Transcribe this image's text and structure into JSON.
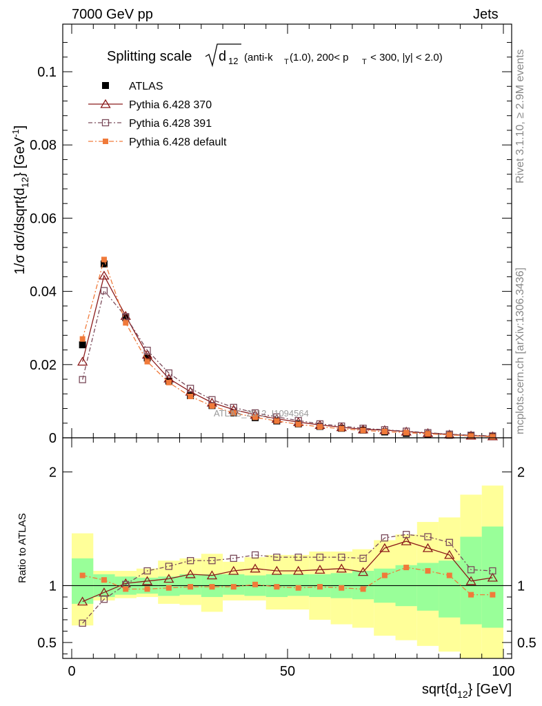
{
  "header": {
    "left": "7000 GeV pp",
    "right": "Jets"
  },
  "side_labels": {
    "rivet": "Rivet 3.1.10, ≥ 2.9M events",
    "mcplots": "mcplots.cern.ch [arXiv:1306.3436]"
  },
  "watermark": "ATLAS_2012_I1094564",
  "colors": {
    "atlas": "#000000",
    "p370": "#8b1a1a",
    "p391": "#7a4a5a",
    "pdefault": "#f07a3a",
    "band_inner": "#99ff99",
    "band_outer": "#ffff99"
  },
  "chart_data": {
    "type": "line",
    "title_main": "Splitting scale",
    "title_math_d": "d",
    "title_math_sub": "12",
    "title_rest1": " (anti-k",
    "title_rest_sub_T": "T",
    "title_rest2": "(1.0), 200< p",
    "title_rest3": " < 300, |y| < 2.0)",
    "ylabel": "1/σ dσ/dsqrt{d",
    "ylabel_sub": "12",
    "ylabel_end": "} [GeV",
    "ylabel_sup": "-1",
    "ylabel_close": "]",
    "ratio_ylabel": "Ratio to ATLAS",
    "xlabel": "sqrt{d",
    "xlabel_sub": "12",
    "xlabel_end": "} [GeV]",
    "xlim": [
      0,
      100
    ],
    "ylim": [
      0,
      0.113
    ],
    "ratio_ylim": [
      0.36,
      2.3
    ],
    "main_yticks": [
      {
        "v": 0.0,
        "label": "0"
      },
      {
        "v": 0.02,
        "label": "0.02"
      },
      {
        "v": 0.04,
        "label": "0.04"
      },
      {
        "v": 0.06,
        "label": "0.06"
      },
      {
        "v": 0.08,
        "label": "0.08"
      },
      {
        "v": 0.1,
        "label": "0.1"
      }
    ],
    "ratio_yticks": [
      {
        "v": 0.5,
        "label": "0.5"
      },
      {
        "v": 1,
        "label": "1"
      },
      {
        "v": 2,
        "label": "2"
      }
    ],
    "xticks": [
      {
        "v": 0,
        "label": "0"
      },
      {
        "v": 50,
        "label": "50"
      },
      {
        "v": 100,
        "label": "100"
      }
    ],
    "x": [
      2.5,
      7.5,
      12.5,
      17.5,
      22.5,
      27.5,
      32.5,
      37.5,
      42.5,
      47.5,
      52.5,
      57.5,
      62.5,
      67.5,
      72.5,
      77.5,
      82.5,
      87.5,
      92.5,
      97.5
    ],
    "series": [
      {
        "name": "ATLAS",
        "key": "atlas",
        "values": [
          0.0254,
          0.0475,
          0.0328,
          0.0218,
          0.0155,
          0.0115,
          0.0088,
          0.0068,
          0.0055,
          0.0046,
          0.0038,
          0.0031,
          0.0026,
          0.0021,
          0.0016,
          0.0012,
          0.001,
          0.0007,
          0.0005,
          0.0003
        ],
        "ratio": [
          1,
          1,
          1,
          1,
          1,
          1,
          1,
          1,
          1,
          1,
          1,
          1,
          1,
          1,
          1,
          1,
          1,
          1,
          1,
          1
        ]
      },
      {
        "name": "Pythia 6.428 370",
        "key": "p370",
        "values": [
          0.0208,
          0.0443,
          0.0333,
          0.0227,
          0.0162,
          0.0126,
          0.0096,
          0.0077,
          0.0063,
          0.0052,
          0.0043,
          0.0035,
          0.0029,
          0.0023,
          0.0021,
          0.0017,
          0.0013,
          0.0009,
          0.0006,
          0.0004
        ],
        "ratio": [
          0.86,
          0.94,
          1.02,
          1.04,
          1.06,
          1.1,
          1.09,
          1.13,
          1.15,
          1.13,
          1.13,
          1.14,
          1.15,
          1.12,
          1.33,
          1.39,
          1.33,
          1.27,
          1.04,
          1.07
        ]
      },
      {
        "name": "Pythia 6.428 391",
        "key": "p391",
        "values": [
          0.0159,
          0.0402,
          0.0331,
          0.0239,
          0.0177,
          0.0135,
          0.0104,
          0.0083,
          0.0068,
          0.0057,
          0.0047,
          0.0038,
          0.0032,
          0.0026,
          0.0022,
          0.0018,
          0.0014,
          0.001,
          0.0007,
          0.0005
        ],
        "ratio": [
          0.67,
          0.88,
          1.01,
          1.13,
          1.17,
          1.22,
          1.22,
          1.24,
          1.27,
          1.25,
          1.25,
          1.25,
          1.25,
          1.24,
          1.42,
          1.45,
          1.43,
          1.38,
          1.14,
          1.13
        ]
      },
      {
        "name": "Pythia 6.428 default",
        "key": "pdefault",
        "values": [
          0.027,
          0.0487,
          0.0314,
          0.0208,
          0.0151,
          0.0113,
          0.0087,
          0.0068,
          0.0056,
          0.0046,
          0.0037,
          0.003,
          0.0025,
          0.002,
          0.0017,
          0.0014,
          0.0011,
          0.0008,
          0.0005,
          0.0003
        ],
        "ratio": [
          1.09,
          1.05,
          0.97,
          0.97,
          0.98,
          0.99,
          0.99,
          0.99,
          1.01,
          0.99,
          0.98,
          0.99,
          0.98,
          0.97,
          1.09,
          1.16,
          1.13,
          1.09,
          0.92,
          0.92
        ]
      }
    ],
    "band_inner": [
      [
        0.84,
        1.24
      ],
      [
        0.9,
        1.1
      ],
      [
        0.92,
        1.08
      ],
      [
        0.93,
        1.07
      ],
      [
        0.91,
        1.08
      ],
      [
        0.92,
        1.1
      ],
      [
        0.9,
        1.1
      ],
      [
        0.92,
        1.1
      ],
      [
        0.91,
        1.09
      ],
      [
        0.9,
        1.1
      ],
      [
        0.91,
        1.1
      ],
      [
        0.9,
        1.1
      ],
      [
        0.89,
        1.11
      ],
      [
        0.88,
        1.13
      ],
      [
        0.85,
        1.15
      ],
      [
        0.82,
        1.18
      ],
      [
        0.78,
        1.2
      ],
      [
        0.72,
        1.22
      ],
      [
        0.66,
        1.43
      ],
      [
        0.63,
        1.52
      ]
    ],
    "band_outer": [
      [
        0.65,
        1.46
      ],
      [
        0.87,
        1.13
      ],
      [
        0.89,
        1.13
      ],
      [
        0.9,
        1.15
      ],
      [
        0.84,
        1.22
      ],
      [
        0.83,
        1.24
      ],
      [
        0.77,
        1.28
      ],
      [
        0.87,
        1.21
      ],
      [
        0.87,
        1.25
      ],
      [
        0.79,
        1.27
      ],
      [
        0.79,
        1.27
      ],
      [
        0.7,
        1.3
      ],
      [
        0.66,
        1.3
      ],
      [
        0.63,
        1.32
      ],
      [
        0.56,
        1.4
      ],
      [
        0.52,
        1.45
      ],
      [
        0.47,
        1.56
      ],
      [
        0.42,
        1.6
      ],
      [
        0.36,
        1.8
      ],
      [
        0.36,
        1.88
      ]
    ]
  }
}
